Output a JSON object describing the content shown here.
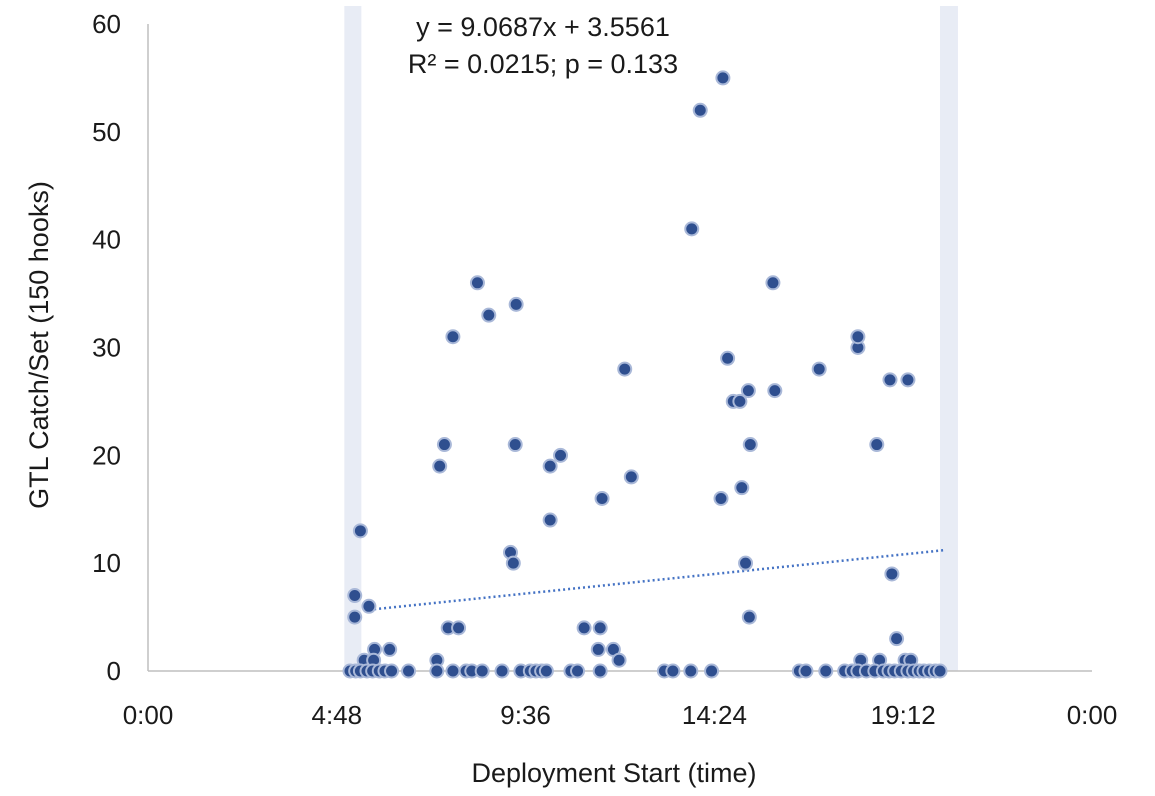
{
  "chart_data": {
    "type": "scatter",
    "title": "",
    "xlabel": "Deployment Start (time)",
    "ylabel": "GTL Catch/Set (150 hooks)",
    "xlim": [
      0,
      1
    ],
    "ylim": [
      0,
      60
    ],
    "x_unit": "fraction of day",
    "x_ticks": [
      0,
      0.2,
      0.4,
      0.6,
      0.8,
      1.0
    ],
    "x_tick_labels": [
      "0:00",
      "4:48",
      "9:36",
      "14:24",
      "19:12",
      "0:00"
    ],
    "y_ticks": [
      0,
      10,
      20,
      30,
      40,
      50,
      60
    ],
    "y_tick_labels": [
      "0",
      "10",
      "20",
      "30",
      "40",
      "50",
      "60"
    ],
    "grid": false,
    "legend": "none",
    "colors": {
      "marker": "#2f4f8f",
      "marker_edge": "#a9b8d8",
      "trend": "#4472c4",
      "band": "#e8ecf5",
      "axis": "#bfbfbf"
    },
    "shaded_bands": [
      {
        "x": [
          0.208,
          0.226
        ]
      },
      {
        "x": [
          0.839,
          0.858
        ]
      }
    ],
    "trendline": {
      "type": "linear",
      "slope": 9.0687,
      "intercept": 3.5561,
      "x_range": [
        0.229,
        0.843
      ],
      "equation": "y = 9.0687x + 3.5561",
      "stats": "R² = 0.0215; p = 0.133"
    },
    "series": [
      {
        "points": [
          [
            0.219,
            7
          ],
          [
            0.219,
            5
          ],
          [
            0.225,
            13
          ],
          [
            0.229,
            1
          ],
          [
            0.234,
            6
          ],
          [
            0.24,
            2
          ],
          [
            0.239,
            1
          ],
          [
            0.256,
            2
          ],
          [
            0.309,
            19
          ],
          [
            0.314,
            21
          ],
          [
            0.323,
            31
          ],
          [
            0.318,
            4
          ],
          [
            0.329,
            4
          ],
          [
            0.306,
            1
          ],
          [
            0.349,
            36
          ],
          [
            0.361,
            33
          ],
          [
            0.384,
            11
          ],
          [
            0.387,
            10
          ],
          [
            0.39,
            34
          ],
          [
            0.389,
            21
          ],
          [
            0.426,
            19
          ],
          [
            0.437,
            20
          ],
          [
            0.426,
            14
          ],
          [
            0.462,
            4
          ],
          [
            0.479,
            4
          ],
          [
            0.477,
            2
          ],
          [
            0.481,
            16
          ],
          [
            0.493,
            2
          ],
          [
            0.499,
            1
          ],
          [
            0.505,
            28
          ],
          [
            0.512,
            18
          ],
          [
            0.576,
            41
          ],
          [
            0.585,
            52
          ],
          [
            0.609,
            55
          ],
          [
            0.614,
            29
          ],
          [
            0.62,
            25
          ],
          [
            0.627,
            25
          ],
          [
            0.607,
            16
          ],
          [
            0.629,
            17
          ],
          [
            0.633,
            10
          ],
          [
            0.636,
            26
          ],
          [
            0.638,
            21
          ],
          [
            0.637,
            5
          ],
          [
            0.662,
            36
          ],
          [
            0.664,
            26
          ],
          [
            0.711,
            28
          ],
          [
            0.752,
            30
          ],
          [
            0.752,
            31
          ],
          [
            0.755,
            1
          ],
          [
            0.772,
            21
          ],
          [
            0.775,
            1
          ],
          [
            0.786,
            27
          ],
          [
            0.788,
            9
          ],
          [
            0.793,
            3
          ],
          [
            0.805,
            27
          ],
          [
            0.802,
            1
          ],
          [
            0.808,
            1
          ],
          [
            0.214,
            0
          ],
          [
            0.22,
            0
          ],
          [
            0.225,
            0
          ],
          [
            0.232,
            0
          ],
          [
            0.238,
            0
          ],
          [
            0.245,
            0
          ],
          [
            0.251,
            0
          ],
          [
            0.258,
            0
          ],
          [
            0.276,
            0
          ],
          [
            0.306,
            0
          ],
          [
            0.323,
            0
          ],
          [
            0.337,
            0
          ],
          [
            0.343,
            0
          ],
          [
            0.354,
            0
          ],
          [
            0.375,
            0
          ],
          [
            0.395,
            0
          ],
          [
            0.405,
            0
          ],
          [
            0.411,
            0
          ],
          [
            0.417,
            0
          ],
          [
            0.422,
            0
          ],
          [
            0.448,
            0
          ],
          [
            0.455,
            0
          ],
          [
            0.479,
            0
          ],
          [
            0.547,
            0
          ],
          [
            0.556,
            0
          ],
          [
            0.575,
            0
          ],
          [
            0.597,
            0
          ],
          [
            0.69,
            0
          ],
          [
            0.697,
            0
          ],
          [
            0.718,
            0
          ],
          [
            0.738,
            0
          ],
          [
            0.746,
            0
          ],
          [
            0.752,
            0
          ],
          [
            0.761,
            0
          ],
          [
            0.77,
            0
          ],
          [
            0.779,
            0
          ],
          [
            0.785,
            0
          ],
          [
            0.791,
            0
          ],
          [
            0.798,
            0
          ],
          [
            0.805,
            0
          ],
          [
            0.811,
            0
          ],
          [
            0.817,
            0
          ],
          [
            0.822,
            0
          ],
          [
            0.828,
            0
          ],
          [
            0.834,
            0
          ],
          [
            0.839,
            0
          ]
        ]
      }
    ]
  }
}
